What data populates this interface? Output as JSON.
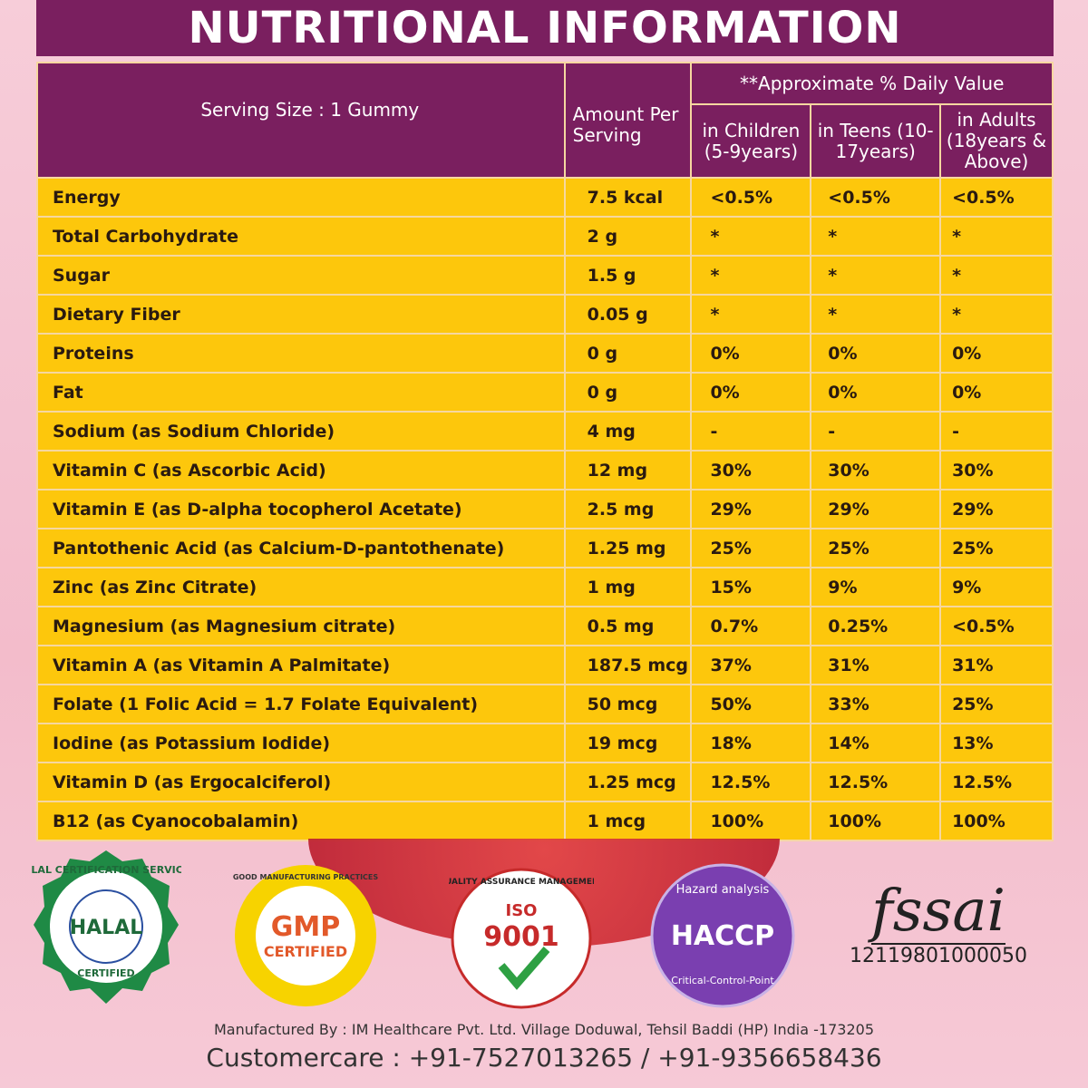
{
  "title": "NUTRITIONAL INFORMATION",
  "header": {
    "serving": "Serving Size : 1 Gummy",
    "amount": "Amount Per Serving",
    "daily_value": "**Approximate % Daily Value",
    "children": "in Children (5-9years)",
    "teens": "in Teens (10-17years)",
    "adults": "in Adults (18years & Above)"
  },
  "rows": [
    [
      "Energy",
      "7.5 kcal",
      "<0.5%",
      "<0.5%",
      "<0.5%"
    ],
    [
      "Total Carbohydrate",
      "2 g",
      "*",
      "*",
      "*"
    ],
    [
      "Sugar",
      "1.5 g",
      "*",
      "*",
      "*"
    ],
    [
      "Dietary Fiber",
      "0.05 g",
      "*",
      "*",
      "*"
    ],
    [
      "Proteins",
      "0 g",
      "0%",
      "0%",
      "0%"
    ],
    [
      "Fat",
      "0 g",
      "0%",
      "0%",
      "0%"
    ],
    [
      "Sodium (as Sodium Chloride)",
      "4 mg",
      "-",
      "-",
      "-"
    ],
    [
      "Vitamin C (as Ascorbic Acid)",
      "12 mg",
      "30%",
      "30%",
      "30%"
    ],
    [
      "Vitamin E (as D-alpha tocopherol Acetate)",
      "2.5 mg",
      "29%",
      "29%",
      "29%"
    ],
    [
      "Pantothenic Acid (as Calcium-D-pantothenate)",
      "1.25 mg",
      "25%",
      "25%",
      "25%"
    ],
    [
      "Zinc (as Zinc Citrate)",
      "1 mg",
      "15%",
      "9%",
      "9%"
    ],
    [
      "Magnesium (as Magnesium citrate)",
      "0.5 mg",
      "0.7%",
      "0.25%",
      "<0.5%"
    ],
    [
      "Vitamin A (as Vitamin A Palmitate)",
      "187.5 mcg",
      "37%",
      "31%",
      "31%"
    ],
    [
      "Folate (1 Folic Acid = 1.7 Folate Equivalent)",
      "50 mcg",
      "50%",
      "33%",
      "25%"
    ],
    [
      "Iodine (as Potassium Iodide)",
      "19 mcg",
      "18%",
      "14%",
      "13%"
    ],
    [
      "Vitamin D (as Ergocalciferol)",
      "1.25 mcg",
      "12.5%",
      "12.5%",
      "12.5%"
    ],
    [
      "B12 (as Cyanocobalamin)",
      "1 mcg",
      "100%",
      "100%",
      "100%"
    ]
  ],
  "badges": {
    "halal": {
      "ring": "HALAL CERTIFICATION SERVICES",
      "center": "HALAL",
      "bottom": "CERTIFIED"
    },
    "gmp": {
      "ring": "GOOD MANUFACTURING PRACTICES",
      "center": "GMP",
      "sub": "CERTIFIED"
    },
    "iso": {
      "ring": "QUALITY ASSURANCE MANAGEMENT",
      "top": "ISO",
      "center": "9001"
    },
    "haccp": {
      "top": "Hazard analysis",
      "center": "HACCP",
      "bottom": "Critical-Control-Point"
    },
    "fssai": {
      "logo": "fssai",
      "number": "12119801000050"
    }
  },
  "footer": {
    "manufacturer": "Manufactured By : IM Healthcare Pvt. Ltd. Village Doduwal, Tehsil Baddi (HP) India -173205",
    "customercare": "Customercare : +91-7527013265 / +91-9356658436"
  },
  "colors": {
    "purple": "#7a1f5f",
    "yellow": "#fdc70c"
  }
}
